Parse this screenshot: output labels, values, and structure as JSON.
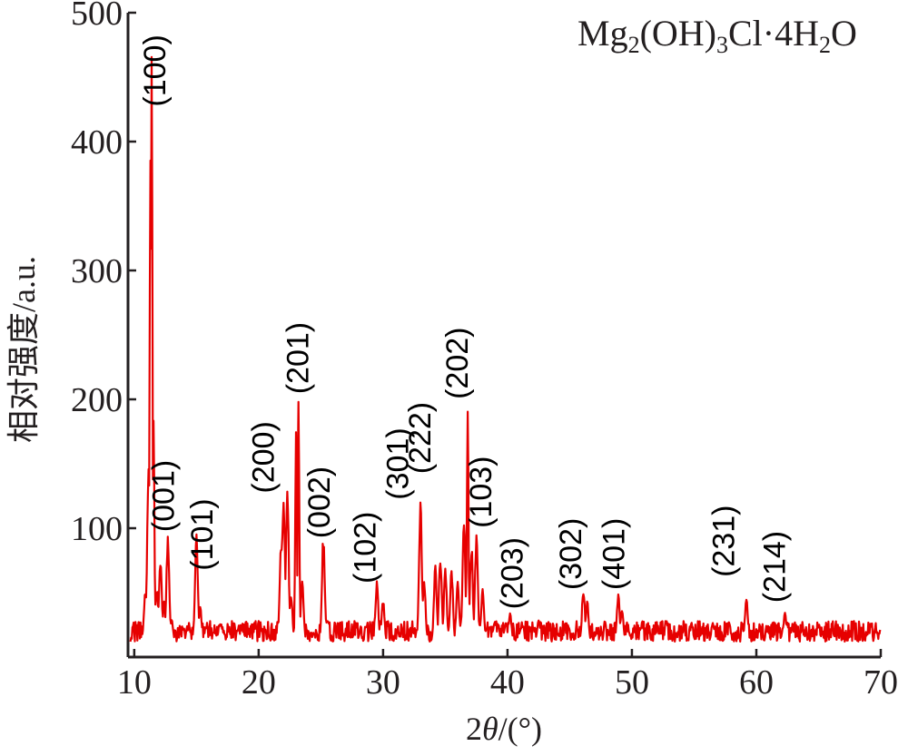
{
  "chart_data": {
    "type": "line",
    "title": "",
    "annotation": {
      "base": "Mg",
      "sub1": "2",
      "mid1": "(OH)",
      "sub2": "3",
      "mid2": "Cl·4H",
      "sub3": "2",
      "end": "O"
    },
    "xlabel": {
      "prefix": "2",
      "italic": "θ",
      "suffix": "/(°)"
    },
    "ylabel": "相对强度/a.u.",
    "xlim": [
      9.5,
      70
    ],
    "ylim": [
      0,
      500
    ],
    "x_ticks": [
      10,
      20,
      30,
      40,
      50,
      60,
      70
    ],
    "y_ticks": [
      100,
      200,
      300,
      400,
      500
    ],
    "baseline": 12,
    "series": [
      {
        "color": "#e60000",
        "peaks": [
          {
            "x": 10.5,
            "y": 15
          },
          {
            "x": 10.9,
            "y": 55
          },
          {
            "x": 11.15,
            "y": 150
          },
          {
            "x": 11.3,
            "y": 435
          },
          {
            "x": 11.4,
            "y": 480
          },
          {
            "x": 11.55,
            "y": 195
          },
          {
            "x": 11.8,
            "y": 55
          },
          {
            "x": 12.1,
            "y": 80
          },
          {
            "x": 12.4,
            "y": 45
          },
          {
            "x": 12.7,
            "y": 98
          },
          {
            "x": 13.0,
            "y": 30
          },
          {
            "x": 15.0,
            "y": 98
          },
          {
            "x": 15.3,
            "y": 40
          },
          {
            "x": 21.8,
            "y": 95
          },
          {
            "x": 22.0,
            "y": 132
          },
          {
            "x": 22.3,
            "y": 136
          },
          {
            "x": 22.6,
            "y": 50
          },
          {
            "x": 23.0,
            "y": 185
          },
          {
            "x": 23.2,
            "y": 208
          },
          {
            "x": 23.5,
            "y": 60
          },
          {
            "x": 25.2,
            "y": 96
          },
          {
            "x": 25.5,
            "y": 30
          },
          {
            "x": 29.5,
            "y": 60
          },
          {
            "x": 30.0,
            "y": 45
          },
          {
            "x": 33.0,
            "y": 122
          },
          {
            "x": 33.3,
            "y": 60
          },
          {
            "x": 34.2,
            "y": 72
          },
          {
            "x": 34.6,
            "y": 82
          },
          {
            "x": 35.0,
            "y": 70
          },
          {
            "x": 35.5,
            "y": 72
          },
          {
            "x": 36.0,
            "y": 60
          },
          {
            "x": 36.5,
            "y": 110
          },
          {
            "x": 36.8,
            "y": 205
          },
          {
            "x": 37.1,
            "y": 90
          },
          {
            "x": 37.5,
            "y": 98
          },
          {
            "x": 38.0,
            "y": 55
          },
          {
            "x": 40.2,
            "y": 35
          },
          {
            "x": 42.5,
            "y": 30
          },
          {
            "x": 46.1,
            "y": 55
          },
          {
            "x": 46.4,
            "y": 45
          },
          {
            "x": 48.9,
            "y": 50
          },
          {
            "x": 49.2,
            "y": 38
          },
          {
            "x": 56.5,
            "y": 28
          },
          {
            "x": 59.2,
            "y": 47
          },
          {
            "x": 62.3,
            "y": 35
          },
          {
            "x": 65.0,
            "y": 25
          }
        ]
      }
    ],
    "peak_labels": [
      {
        "text": "(100)",
        "x": 12.5,
        "y": 455
      },
      {
        "text": "(001)",
        "x": 13.2,
        "y": 125
      },
      {
        "text": "(101)",
        "x": 16.3,
        "y": 95
      },
      {
        "text": "(200)",
        "x": 21.2,
        "y": 155
      },
      {
        "text": "(201)",
        "x": 24.0,
        "y": 232
      },
      {
        "text": "(002)",
        "x": 25.7,
        "y": 120
      },
      {
        "text": "(102)",
        "x": 29.4,
        "y": 85
      },
      {
        "text": "(301)",
        "x": 32.0,
        "y": 150
      },
      {
        "text": "(222)",
        "x": 33.8,
        "y": 170
      },
      {
        "text": "(202)",
        "x": 36.8,
        "y": 228
      },
      {
        "text": "(103)",
        "x": 38.7,
        "y": 128
      },
      {
        "text": "(203)",
        "x": 41.2,
        "y": 65
      },
      {
        "text": "(302)",
        "x": 45.9,
        "y": 80
      },
      {
        "text": "(401)",
        "x": 49.4,
        "y": 80
      },
      {
        "text": "(231)",
        "x": 58.2,
        "y": 90
      },
      {
        "text": "(214)",
        "x": 62.3,
        "y": 70
      }
    ]
  }
}
